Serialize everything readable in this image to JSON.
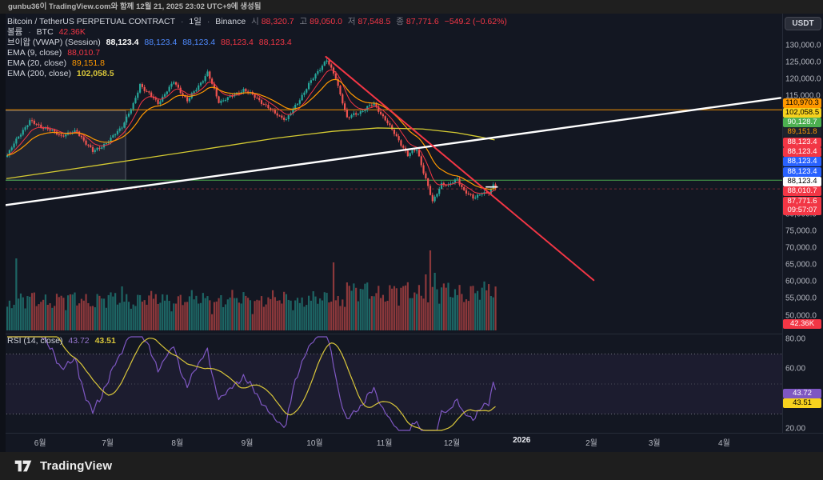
{
  "watermark": "gunbu36이 TradingView.com와 함께 12월 21, 2025 23:02 UTC+9에 생성됨",
  "toolbar": {
    "currency_button": "USDT"
  },
  "header": {
    "symbol": "Bitcoin / TetherUS PERPETUAL CONTRACT",
    "sep": "·",
    "interval": "1일",
    "exchange": "Binance",
    "open_label": "시",
    "open": "88,320.7",
    "high_label": "고",
    "high": "89,050.0",
    "low_label": "저",
    "low": "87,548.5",
    "close_label": "종",
    "close": "87,771.6",
    "change": "−549.2 (−0.62%)"
  },
  "legend": {
    "volume": {
      "label": "볼륨",
      "sep": "·",
      "unit": "BTC",
      "value": "42.36K"
    },
    "vwap": {
      "label": "브이왑 (VWAP) (Session)",
      "values": [
        "88,123.4",
        "88,123.4",
        "88,123.4",
        "88,123.4",
        "88,123.4"
      ]
    },
    "ema9": {
      "label": "EMA (9, close)",
      "value": "88,010.7"
    },
    "ema20": {
      "label": "EMA (20, close)",
      "value": "89,151.8"
    },
    "ema200": {
      "label": "EMA (200, close)",
      "value": "102,058.5"
    }
  },
  "rsi_legend": {
    "label": "RSI (14, close)",
    "value": "43.72",
    "ma_value": "43.51"
  },
  "price_axis": {
    "ticks": [
      "130,000.0",
      "125,000.0",
      "120,000.0",
      "115,000.0",
      "80,000.0",
      "75,000.0",
      "70,000.0",
      "65,000.0",
      "60,000.0",
      "55,000.0",
      "50,000.0"
    ],
    "badges": [
      {
        "text": "110,970.3",
        "bg": "#ff9800",
        "fg": "#000000"
      },
      {
        "text": "102,058.5",
        "bg": "#f7d21e",
        "fg": "#000000"
      },
      {
        "text": "90,128.7",
        "bg": "#4caf50",
        "fg": "#ffffff"
      },
      {
        "text": "89,151.8",
        "bg": "#1e222d",
        "fg": "#ff9800"
      },
      {
        "text": "88,123.4",
        "bg": "#f23645",
        "fg": "#ffffff"
      },
      {
        "text": "88,123.4",
        "bg": "#f23645",
        "fg": "#ffffff"
      },
      {
        "text": "88,123.4",
        "bg": "#2962ff",
        "fg": "#ffffff"
      },
      {
        "text": "88,123.4",
        "bg": "#2962ff",
        "fg": "#ffffff"
      },
      {
        "text": "88,123.4",
        "bg": "#ffffff",
        "fg": "#000000"
      },
      {
        "text": "88,010.7",
        "bg": "#f23645",
        "fg": "#ffffff"
      }
    ],
    "current_price_badge": {
      "price": "87,771.6",
      "countdown": "09:57:07",
      "bg": "#f23645",
      "fg": "#ffffff"
    },
    "volume_badge": {
      "text": "42.36K",
      "bg": "#f23645",
      "fg": "#ffffff"
    }
  },
  "rsi_axis": {
    "ticks": [
      {
        "label": "80.00",
        "value": 80
      },
      {
        "label": "60.00",
        "value": 60
      },
      {
        "label": "20.00",
        "value": 20
      }
    ],
    "badges": [
      {
        "text": "43.72",
        "bg": "#7e57c2",
        "fg": "#ffffff"
      },
      {
        "text": "43.51",
        "bg": "#f7d21e",
        "fg": "#000000"
      }
    ]
  },
  "time_axis": {
    "labels": [
      {
        "label": "6월",
        "day": 15
      },
      {
        "label": "7월",
        "day": 45
      },
      {
        "label": "8월",
        "day": 76
      },
      {
        "label": "9월",
        "day": 107
      },
      {
        "label": "10월",
        "day": 137
      },
      {
        "label": "11월",
        "day": 168
      },
      {
        "label": "12월",
        "day": 198
      },
      {
        "label": "2026",
        "day": 229,
        "em": true
      },
      {
        "label": "2월",
        "day": 260
      },
      {
        "label": "3월",
        "day": 288
      },
      {
        "label": "4월",
        "day": 319
      }
    ]
  },
  "footer": {
    "brand": "TradingView"
  },
  "colors": {
    "up": "#26a69a",
    "down": "#ef5350",
    "red": "#f23645",
    "blue": "#2962ff",
    "orange": "#ff9800",
    "yellow_badge": "#f7d21e",
    "ema200": "#d4ca32",
    "purple": "#7e57c2",
    "rsi_ma": "#d8c53a",
    "green": "#4caf50",
    "white": "#ffffff",
    "divider": "#262b38"
  },
  "chart_data": {
    "type": "candlestick",
    "title": "Bitcoin / TetherUS PERPETUAL CONTRACT",
    "interval": "1D",
    "exchange": "Binance",
    "currency": "USDT",
    "last_bar": {
      "open": 88320.7,
      "high": 89050.0,
      "low": 87548.5,
      "close": 87771.6,
      "change": -549.2,
      "change_pct": -0.62
    },
    "indicators": {
      "volume_btc_last": "42.36K",
      "vwap_session": 88123.4,
      "ema9": 88010.7,
      "ema20": 89151.8,
      "ema200": 102058.5,
      "rsi14": 43.72,
      "rsi14_ma": 43.51
    },
    "ylim": [
      50000,
      132000
    ],
    "anchor_day0_approx": "2025-05-17",
    "price_anchors": [
      [
        0,
        97500
      ],
      [
        5,
        103000
      ],
      [
        10,
        107500
      ],
      [
        17,
        105800
      ],
      [
        24,
        103200
      ],
      [
        31,
        104500
      ],
      [
        38,
        98800
      ],
      [
        45,
        101500
      ],
      [
        51,
        106000
      ],
      [
        56,
        112500
      ],
      [
        59,
        118800
      ],
      [
        62,
        116500
      ],
      [
        67,
        112800
      ],
      [
        74,
        119200
      ],
      [
        80,
        113800
      ],
      [
        89,
        121800
      ],
      [
        94,
        113200
      ],
      [
        99,
        114800
      ],
      [
        105,
        117200
      ],
      [
        111,
        114200
      ],
      [
        118,
        110300
      ],
      [
        124,
        108200
      ],
      [
        129,
        113200
      ],
      [
        135,
        119200
      ],
      [
        140,
        124200
      ],
      [
        142,
        125800
      ],
      [
        146,
        120500
      ],
      [
        149,
        113500
      ],
      [
        151,
        108500
      ],
      [
        157,
        110200
      ],
      [
        163,
        112800
      ],
      [
        168,
        108200
      ],
      [
        174,
        102000
      ],
      [
        178,
        97200
      ],
      [
        182,
        99200
      ],
      [
        186,
        90500
      ],
      [
        189,
        83800
      ],
      [
        193,
        89300
      ],
      [
        196,
        88400
      ],
      [
        200,
        90400
      ],
      [
        203,
        86800
      ],
      [
        207,
        84800
      ],
      [
        211,
        86800
      ],
      [
        214,
        86200
      ],
      [
        216,
        88800
      ],
      [
        217,
        87771.6
      ]
    ],
    "ema200_anchors": [
      [
        0,
        90600
      ],
      [
        30,
        93500
      ],
      [
        60,
        96500
      ],
      [
        90,
        99500
      ],
      [
        120,
        102600
      ],
      [
        145,
        104600
      ],
      [
        165,
        105600
      ],
      [
        185,
        105300
      ],
      [
        200,
        104200
      ],
      [
        210,
        103000
      ],
      [
        217,
        102058.5
      ]
    ],
    "horizontal_levels": [
      {
        "price": 110970.3,
        "color": "#ff9800",
        "style": "solid"
      },
      {
        "price": 90128.7,
        "color": "#4caf50",
        "style": "solid"
      },
      {
        "price": 87548.5,
        "color": "#f23645",
        "style": "dashed"
      }
    ],
    "trend_lines": [
      {
        "name": "ascending-support",
        "color": "#ffffff",
        "width": 2.4,
        "from": {
          "day": -2,
          "price": 82600
        },
        "to": {
          "day": 344,
          "price": 114500
        }
      },
      {
        "name": "descending-resistance",
        "color": "#f23645",
        "width": 2,
        "from": {
          "day": 142,
          "price": 126700
        },
        "to": {
          "day": 261,
          "price": 60500
        }
      }
    ],
    "highlight_box": {
      "from_day": -3,
      "to_day": 53,
      "top_price": 110970.3,
      "bottom_price": 90128.7
    },
    "rsi": {
      "period": 14,
      "last": 43.72,
      "ma_last": 43.51,
      "band": [
        30,
        70
      ],
      "midline": 50,
      "scale_ticks": [
        80,
        60,
        20
      ]
    },
    "volume_spikes": {
      "4": 90,
      "51": 55,
      "145": 85,
      "151": 60,
      "186": 70,
      "188": 100,
      "190": 72
    }
  }
}
